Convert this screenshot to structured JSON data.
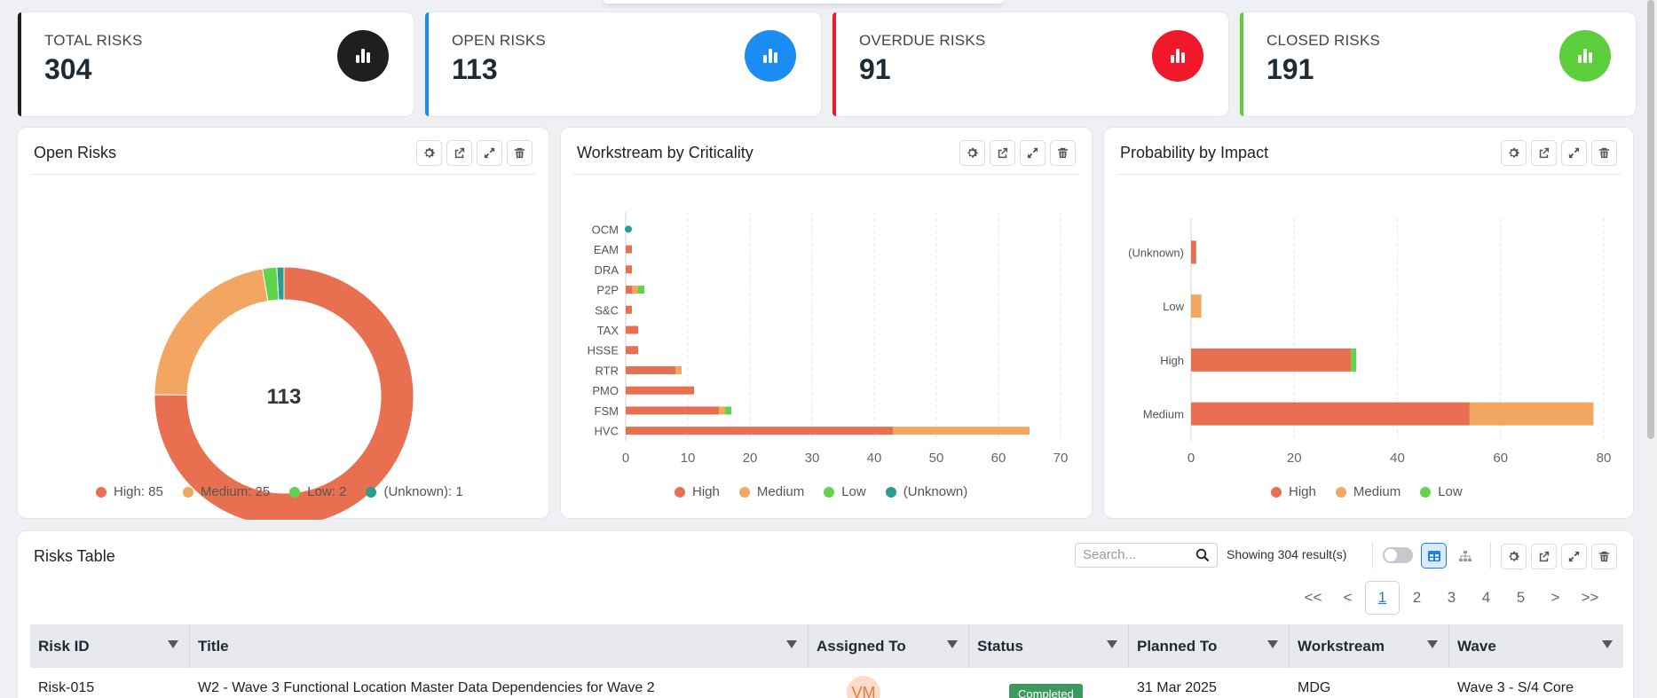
{
  "kpis": [
    {
      "label": "TOTAL RISKS",
      "value": "304",
      "color": "#1f1f1f"
    },
    {
      "label": "OPEN RISKS",
      "value": "113",
      "color": "#1b8cf2"
    },
    {
      "label": "OVERDUE RISKS",
      "value": "91",
      "color": "#f0192c"
    },
    {
      "label": "CLOSED RISKS",
      "value": "191",
      "color": "#5cce3b"
    }
  ],
  "panels": {
    "open_risks_title": "Open Risks",
    "workstream_title": "Workstream by Criticality",
    "probability_title": "Probability by Impact",
    "table_title": "Risks Table"
  },
  "colors": {
    "high": "#e86f50",
    "medium": "#f3a661",
    "low": "#5fd44a",
    "unknown": "#2a9d8f"
  },
  "chart_data": [
    {
      "type": "pie",
      "title": "Open Risks",
      "center_label": "113",
      "categories": [
        "High",
        "Medium",
        "Low",
        "(Unknown)"
      ],
      "values": [
        85,
        25,
        2,
        1
      ],
      "legend_labels": [
        "High: 85",
        "Medium: 25",
        "Low: 2",
        "(Unknown): 1"
      ],
      "legend": "bottom"
    },
    {
      "type": "bar",
      "orientation": "horizontal",
      "stacked": true,
      "title": "Workstream by Criticality",
      "categories": [
        "OCM",
        "EAM",
        "DRA",
        "P2P",
        "S&C",
        "TAX",
        "HSSE",
        "RTR",
        "PMO",
        "FSM",
        "HVC"
      ],
      "series": [
        {
          "name": "High",
          "values": [
            0,
            1,
            1,
            1,
            1,
            2,
            2,
            8,
            11,
            15,
            43
          ]
        },
        {
          "name": "Medium",
          "values": [
            0,
            0,
            0,
            1,
            0,
            0,
            0,
            1,
            0,
            1,
            22
          ]
        },
        {
          "name": "Low",
          "values": [
            0,
            0,
            0,
            1,
            0,
            0,
            0,
            0,
            0,
            1,
            0
          ]
        },
        {
          "name": "(Unknown)",
          "values": [
            1,
            0,
            0,
            0,
            0,
            0,
            0,
            0,
            0,
            0,
            0
          ]
        }
      ],
      "xlim": [
        0,
        70
      ],
      "xticks": [
        0,
        10,
        20,
        30,
        40,
        50,
        60,
        70
      ],
      "grid": true,
      "legend": "bottom"
    },
    {
      "type": "bar",
      "orientation": "horizontal",
      "stacked": true,
      "title": "Probability by Impact",
      "categories": [
        "(Unknown)",
        "Low",
        "High",
        "Medium"
      ],
      "series": [
        {
          "name": "High",
          "values": [
            1,
            0,
            31,
            54
          ]
        },
        {
          "name": "Medium",
          "values": [
            0,
            2,
            0,
            24
          ]
        },
        {
          "name": "Low",
          "values": [
            0,
            0,
            1,
            0
          ]
        }
      ],
      "xlim": [
        0,
        80
      ],
      "xticks": [
        0,
        20,
        40,
        60,
        80
      ],
      "grid": true,
      "legend": "bottom"
    }
  ],
  "table": {
    "search_placeholder": "Search...",
    "showing": "Showing 304 result(s)",
    "pages": [
      "1",
      "2",
      "3",
      "4",
      "5"
    ],
    "pager_first": "<<",
    "pager_prev": "<",
    "pager_next": ">",
    "pager_last": ">>",
    "columns": [
      "Risk ID",
      "Title",
      "Assigned To",
      "Status",
      "Planned To",
      "Workstream",
      "Wave"
    ],
    "row": {
      "risk_id": "Risk-015",
      "title": "W2 - Wave 3 Functional Location Master Data Dependencies for Wave 2",
      "assigned_initials": "VM",
      "status": "Completed",
      "planned_to": "31 Mar 2025",
      "workstream": "MDG",
      "wave": "Wave 3 - S/4 Core"
    }
  }
}
